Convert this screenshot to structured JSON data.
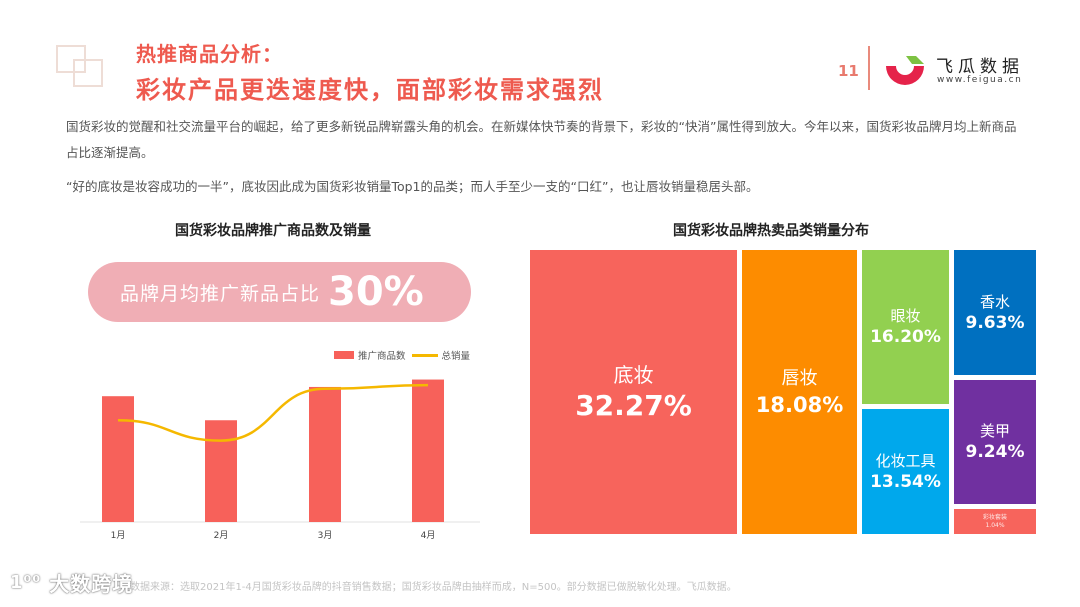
{
  "header": {
    "subtitle": "热推商品分析：",
    "title": "彩妆产品更迭速度快，面部彩妆需求强烈",
    "page_number": "11",
    "brand": {
      "name": "飞瓜数据",
      "url": "www.feigua.cn",
      "colors": {
        "red": "#e5234a",
        "green": "#7dc242"
      }
    }
  },
  "body": {
    "paragraph1": "国货彩妆的觉醒和社交流量平台的崛起，给了更多新锐品牌崭露头角的机会。在新媒体快节奏的背景下，彩妆的“快消”属性得到放大。今年以来，国货彩妆品牌月均上新商品占比逐渐提高。",
    "paragraph2": "“好的底妆是妆容成功的一半”，底妆因此成为国货彩妆销量Top1的品类；而人手至少一支的“口红”，也让唇妆销量稳居头部。"
  },
  "highlight": {
    "label": "品牌月均推广新品占比",
    "value": "30%"
  },
  "left_chart": {
    "title": "国货彩妆品牌推广商品数及销量",
    "legend": [
      "推广商品数",
      "总销量"
    ],
    "x_labels": [
      "1月",
      "2月",
      "3月",
      "4月"
    ]
  },
  "right_chart": {
    "title": "国货彩妆品牌热卖品类销量分布",
    "tiles": [
      {
        "name": "底妆",
        "pct": "32.27%",
        "color": "#f7645c"
      },
      {
        "name": "唇妆",
        "pct": "18.08%",
        "color": "#fd8c00"
      },
      {
        "name": "眼妆",
        "pct": "16.20%",
        "color": "#92d050"
      },
      {
        "name": "化妆工具",
        "pct": "13.54%",
        "color": "#00a8ec"
      },
      {
        "name": "香水",
        "pct": "9.63%",
        "color": "#0070c0"
      },
      {
        "name": "美甲",
        "pct": "9.24%",
        "color": "#7030a0"
      },
      {
        "name": "彩妆套装",
        "pct": "1.04%",
        "color": "#f7645c"
      }
    ]
  },
  "footer": {
    "note": "数据来源：选取2021年1-4月国货彩妆品牌的抖音销售数据；国货彩妆品牌由抽样而成，N=500。部分数据已做脱敏化处理。飞瓜数据。",
    "watermark": "大数跨境"
  },
  "chart_data": [
    {
      "type": "bar",
      "title": "国货彩妆品牌推广商品数及销量",
      "categories": [
        "1月",
        "2月",
        "3月",
        "4月"
      ],
      "series": [
        {
          "name": "推广商品数",
          "type": "bar",
          "values": [
            68,
            55,
            73,
            77
          ]
        },
        {
          "name": "总销量",
          "type": "line",
          "values": [
            55,
            44,
            72,
            74
          ]
        }
      ],
      "xlabel": "",
      "ylabel": "",
      "grid": false,
      "legend_position": "top-right",
      "note": "No y-axis shown; values are relative estimates from pixel heights (0-100 scale)."
    },
    {
      "type": "treemap",
      "title": "国货彩妆品牌热卖品类销量分布",
      "categories": [
        "底妆",
        "唇妆",
        "眼妆",
        "化妆工具",
        "香水",
        "美甲",
        "彩妆套装"
      ],
      "values": [
        32.27,
        18.08,
        16.2,
        13.54,
        9.63,
        9.24,
        1.04
      ],
      "unit": "%"
    }
  ]
}
